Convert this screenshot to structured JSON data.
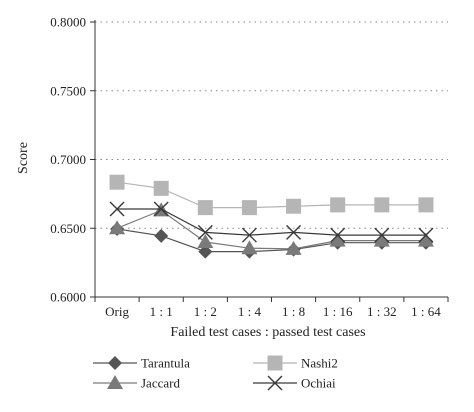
{
  "chart_data": {
    "type": "line",
    "title": "",
    "xlabel": "Failed test cases : passed test cases",
    "ylabel": "Score",
    "categories": [
      "Orig",
      "1 : 1",
      "1 : 2",
      "1 : 4",
      "1 : 8",
      "1 : 16",
      "1 : 32",
      "1 : 64"
    ],
    "ylim": [
      0.6,
      0.8
    ],
    "yticks": [
      "0.6000",
      "0.6500",
      "0.7000",
      "0.7500",
      "0.8000"
    ],
    "grid": "horizontal dotted",
    "legend_position": "bottom",
    "series": [
      {
        "name": "Tarantula",
        "marker": "diamond",
        "color": "#555555",
        "values": [
          0.6495,
          0.6445,
          0.633,
          0.633,
          0.6345,
          0.6395,
          0.6395,
          0.6395
        ]
      },
      {
        "name": "Nashi2",
        "marker": "square",
        "color": "#b5b5b5",
        "values": [
          0.6835,
          0.679,
          0.665,
          0.665,
          0.666,
          0.667,
          0.667,
          0.667
        ]
      },
      {
        "name": "Jaccard",
        "marker": "triangle",
        "color": "#7a7a7a",
        "values": [
          0.65,
          0.663,
          0.64,
          0.6355,
          0.635,
          0.641,
          0.641,
          0.641
        ]
      },
      {
        "name": "Ochiai",
        "marker": "x",
        "color": "#3a3a3a",
        "values": [
          0.664,
          0.664,
          0.647,
          0.645,
          0.647,
          0.645,
          0.645,
          0.645
        ]
      }
    ]
  }
}
